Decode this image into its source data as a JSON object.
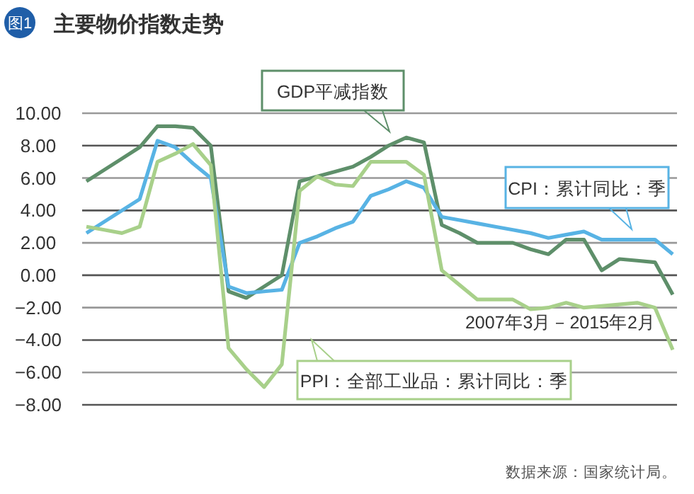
{
  "chart_data": {
    "type": "line",
    "title": "主要物价指数走势",
    "categories": [
      null,
      null,
      null,
      null,
      null,
      null,
      null,
      null,
      null,
      null,
      null,
      null,
      null,
      null,
      null,
      null,
      null,
      null,
      null,
      null,
      null,
      null,
      null,
      null,
      null,
      null,
      null,
      null,
      null,
      null,
      null,
      null,
      null,
      null
    ],
    "series": [
      {
        "name": "GDP平减指数",
        "color": "#5e8f6a",
        "values": [
          5.8,
          6.5,
          7.2,
          7.9,
          9.2,
          9.2,
          9.1,
          8.0,
          -1.0,
          -1.4,
          -0.7,
          0.0,
          5.8,
          6.1,
          6.4,
          6.7,
          7.3,
          8.0,
          8.5,
          8.2,
          3.1,
          2.6,
          2.0,
          2.0,
          2.0,
          1.6,
          1.3,
          2.2,
          2.2,
          0.3,
          1.0,
          0.9,
          0.8,
          -1.2
        ]
      },
      {
        "name": "CPI：累计同比：季",
        "color": "#58b3e4",
        "values": [
          2.6,
          3.3,
          4.0,
          4.7,
          8.3,
          7.9,
          6.9,
          6.0,
          -0.7,
          -1.1,
          -1.0,
          -0.9,
          2.0,
          2.4,
          2.9,
          3.3,
          4.9,
          5.3,
          5.8,
          5.4,
          3.6,
          3.4,
          3.2,
          3.0,
          2.8,
          2.6,
          2.3,
          2.5,
          2.7,
          2.2,
          2.2,
          2.2,
          2.2,
          1.3
        ]
      },
      {
        "name": "PPI：全部工业品：累计同比：季",
        "color": "#a8d08a",
        "values": [
          3.0,
          2.8,
          2.6,
          3.0,
          7.0,
          7.5,
          8.1,
          6.8,
          -4.5,
          -5.8,
          -6.9,
          -5.5,
          5.2,
          6.1,
          5.6,
          5.5,
          7.0,
          7.0,
          7.0,
          6.2,
          0.3,
          -0.6,
          -1.5,
          -1.5,
          -1.5,
          -2.1,
          -2.0,
          -1.7,
          -2.0,
          -1.9,
          -1.8,
          -1.7,
          -2.0,
          -4.6
        ]
      }
    ],
    "ylim": [
      -8,
      10
    ],
    "yticks": [
      {
        "value": 10,
        "label": "10.00"
      },
      {
        "value": 8,
        "label": "8.00"
      },
      {
        "value": 6,
        "label": "6.00"
      },
      {
        "value": 4,
        "label": "4.00"
      },
      {
        "value": 2,
        "label": "2.00"
      },
      {
        "value": 0,
        "label": "0.00"
      },
      {
        "value": -2,
        "label": "−2.00"
      },
      {
        "value": -4,
        "label": "−4.00"
      },
      {
        "value": -6,
        "label": "−6.00"
      },
      {
        "value": -8,
        "label": "−8.00"
      }
    ],
    "grid": "y",
    "legend": "bottom",
    "tick_labels": "y",
    "marker": "none",
    "line_style": "solid",
    "annotations": [
      "图1",
      "2007年3月－2015年2月",
      "数据来源：国家统计局。"
    ]
  }
}
